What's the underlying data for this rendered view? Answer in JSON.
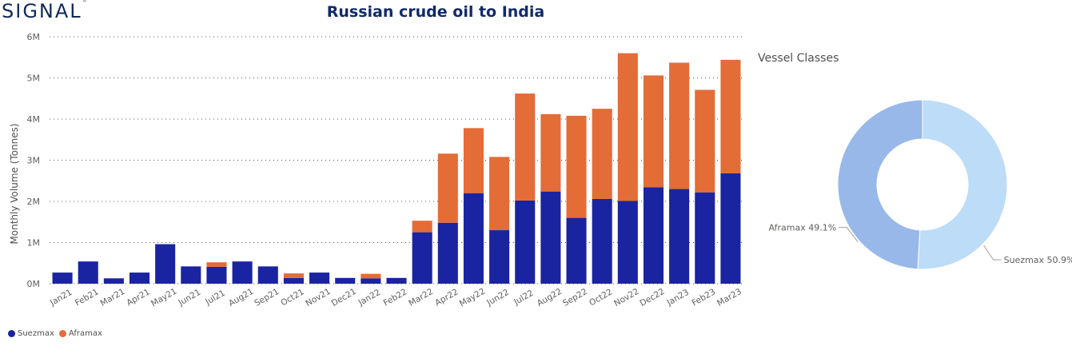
{
  "brand": {
    "logo_text": "SIGNAL",
    "logo_mark": "™"
  },
  "colors": {
    "suezmax": "#1a24a0",
    "aframax": "#e46c37",
    "donut_aframax": "#98b8ea",
    "donut_suezmax": "#bcdcf8",
    "grid": "#555555",
    "axis_text": "#605e5c"
  },
  "chart_data": [
    {
      "type": "bar",
      "stacked": true,
      "title": "Russian crude oil to India",
      "ylabel": "Monthly Volume (Tonnes)",
      "xlabel": "",
      "ylim": [
        0,
        6000000
      ],
      "yticks": [
        0,
        1000000,
        2000000,
        3000000,
        4000000,
        5000000,
        6000000
      ],
      "ytick_labels": [
        "0M",
        "1M",
        "2M",
        "3M",
        "4M",
        "5M",
        "6M"
      ],
      "grid": true,
      "legend_position": "bottom-left",
      "categories": [
        "Jan21",
        "Feb21",
        "Mar21",
        "Apr21",
        "May21",
        "Jun21",
        "Jul21",
        "Aug21",
        "Sep21",
        "Oct21",
        "Nov21",
        "Dec21",
        "Jan22",
        "Feb22",
        "Mar22",
        "Apr22",
        "May22",
        "Jun22",
        "Jul22",
        "Aug22",
        "Sep22",
        "Oct22",
        "Nov22",
        "Dec22",
        "Jan23",
        "Feb23",
        "Mar23"
      ],
      "series": [
        {
          "name": "Suezmax",
          "values": [
            270000,
            540000,
            130000,
            270000,
            960000,
            420000,
            410000,
            540000,
            420000,
            140000,
            270000,
            140000,
            130000,
            140000,
            1250000,
            1480000,
            2200000,
            1300000,
            2020000,
            2240000,
            1600000,
            2060000,
            2010000,
            2340000,
            2300000,
            2220000,
            2680000
          ]
        },
        {
          "name": "Aframax",
          "values": [
            0,
            0,
            0,
            0,
            0,
            0,
            110000,
            0,
            0,
            110000,
            0,
            0,
            110000,
            0,
            280000,
            1680000,
            1580000,
            1780000,
            2600000,
            1880000,
            2480000,
            2190000,
            3590000,
            2720000,
            3070000,
            2490000,
            2760000
          ]
        }
      ]
    },
    {
      "type": "pie",
      "donut": true,
      "title": "Vessel Classes",
      "slices": [
        {
          "name": "Suezmax",
          "percent": 50.9,
          "label": "Suezmax 50.9%"
        },
        {
          "name": "Aframax",
          "percent": 49.1,
          "label": "Aframax 49.1%"
        }
      ]
    }
  ]
}
